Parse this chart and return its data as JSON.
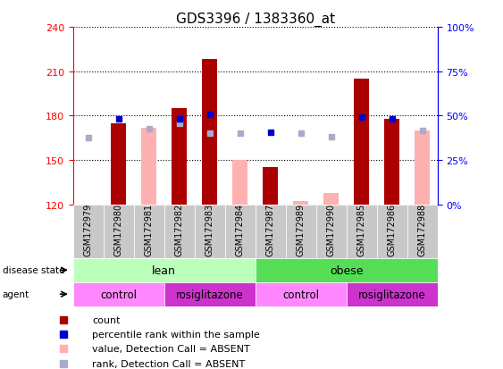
{
  "title": "GDS3396 / 1383360_at",
  "samples": [
    "GSM172979",
    "GSM172980",
    "GSM172981",
    "GSM172982",
    "GSM172983",
    "GSM172984",
    "GSM172987",
    "GSM172989",
    "GSM172990",
    "GSM172985",
    "GSM172986",
    "GSM172988"
  ],
  "count_values": [
    120,
    175,
    null,
    185,
    218,
    null,
    145,
    null,
    null,
    205,
    178,
    null
  ],
  "absent_value_values": [
    null,
    null,
    172,
    null,
    null,
    150,
    null,
    122,
    128,
    null,
    null,
    170
  ],
  "rank_squares": [
    null,
    178,
    null,
    178,
    181,
    null,
    169,
    null,
    null,
    179,
    178,
    null
  ],
  "absent_rank_squares": [
    165,
    null,
    171,
    175,
    168,
    168,
    null,
    168,
    166,
    null,
    null,
    170
  ],
  "ylim": [
    120,
    240
  ],
  "yticks": [
    120,
    150,
    180,
    210,
    240
  ],
  "right_ytick_labels": [
    "0%",
    "25%",
    "50%",
    "75%",
    "100%"
  ],
  "bar_color": "#AA0000",
  "rank_color": "#0000CC",
  "absent_value_color": "#FFB0B0",
  "absent_rank_color": "#AAAACC",
  "disease_lean_color": "#BBFFBB",
  "disease_obese_color": "#55DD55",
  "agent_control_color": "#FF88FF",
  "agent_rosi_color": "#CC33CC",
  "bg_gray": "#C8C8C8"
}
